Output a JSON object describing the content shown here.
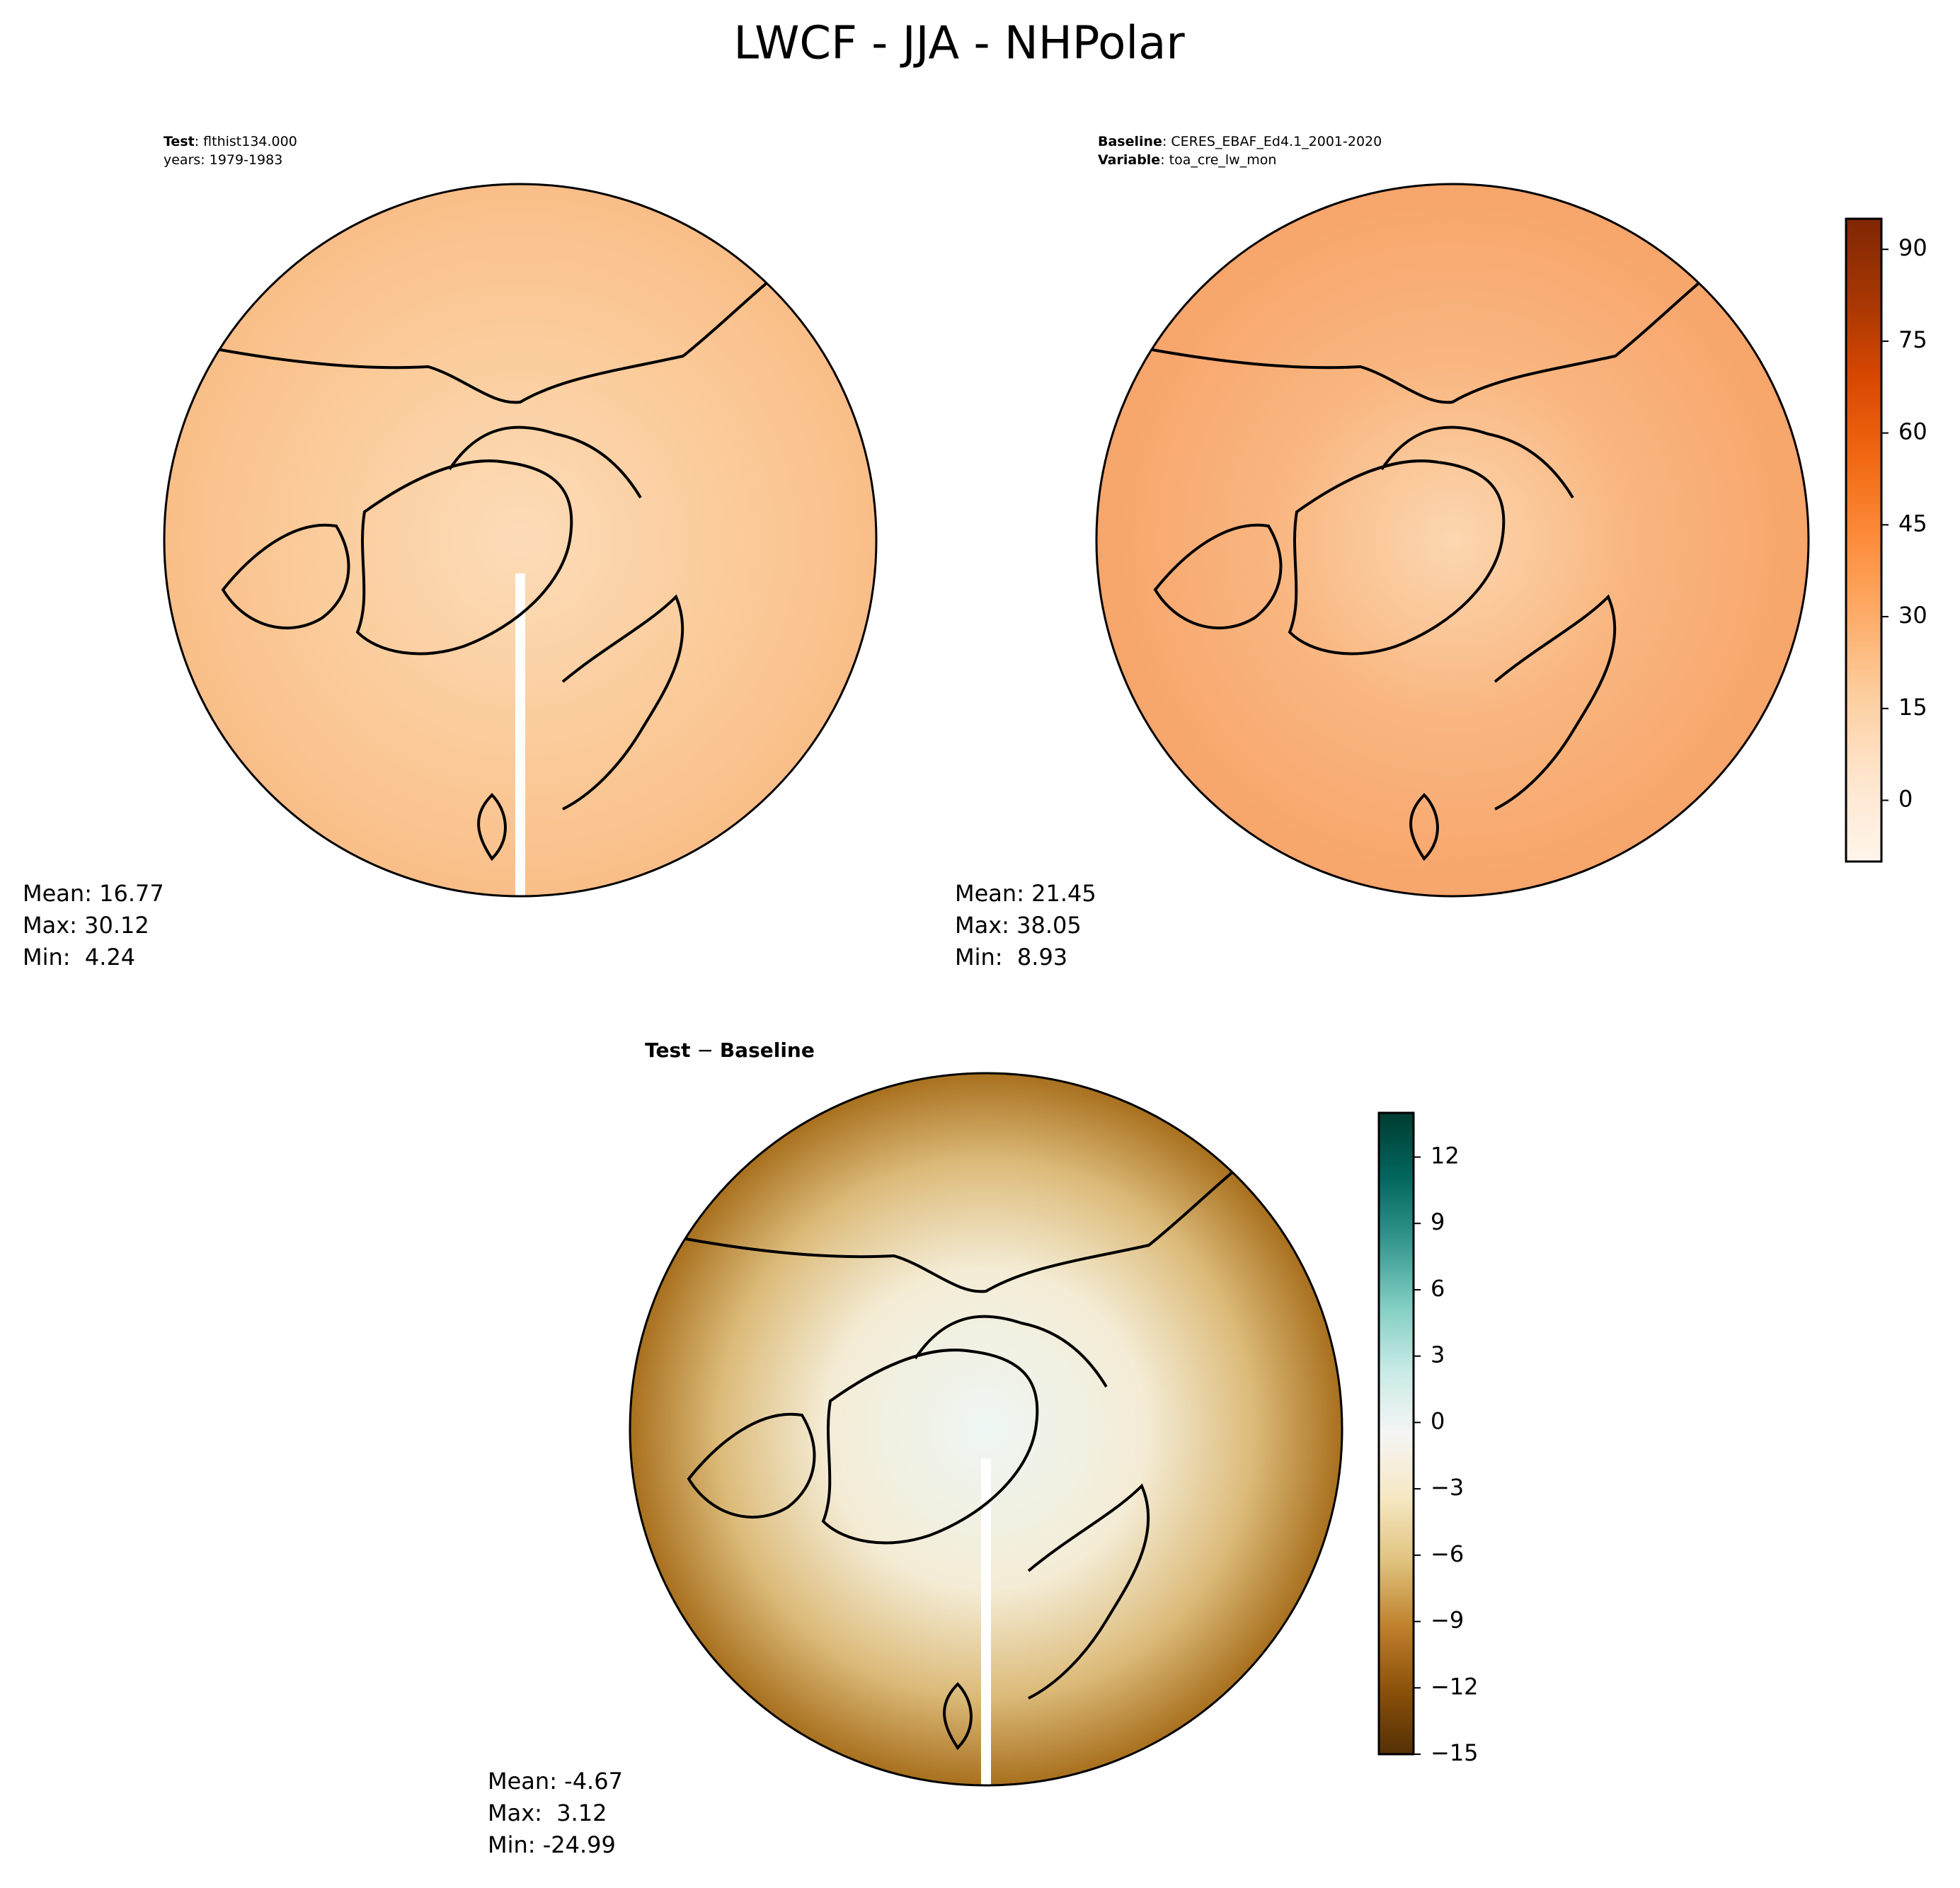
{
  "title": "LWCF - JJA - NHPolar",
  "panels": [
    {
      "heading": [
        {
          "bold": "Test",
          "text": ": flthist134.000"
        },
        {
          "text": "years: 1979-1983"
        }
      ],
      "stats": [
        "Mean: 16.77",
        "Max: 30.12",
        "Min:  4.24"
      ]
    },
    {
      "heading": [
        {
          "bold": "Baseline",
          "text": ": CERES_EBAF_Ed4.1_2001-2020"
        },
        {
          "bold": "Variable",
          "text": ": toa_cre_lw_mon"
        }
      ],
      "stats": [
        "Mean: 21.45",
        "Max: 38.05",
        "Min:  8.93"
      ]
    },
    {
      "heading": [
        {
          "bold": "Test",
          "text": " − ",
          "bold2": "Baseline"
        }
      ],
      "stats": [
        "Mean: -4.67",
        "Max:  3.12",
        "Min: -24.99"
      ]
    }
  ],
  "colorbars": [
    {
      "ylim": [
        -10,
        95
      ],
      "yticks": [
        0,
        15,
        30,
        45,
        60,
        75,
        90
      ],
      "cmap": [
        "#fff5eb",
        "#fee6ce",
        "#fdd0a2",
        "#fdae6b",
        "#fd8d3c",
        "#f16913",
        "#d94801",
        "#a63603",
        "#7f2704"
      ]
    },
    {
      "ylim": [
        -15,
        14
      ],
      "yticks": [
        {
          "value": -15,
          "label": "−15"
        },
        {
          "value": -12,
          "label": "−12"
        },
        {
          "value": -9,
          "label": "−9"
        },
        {
          "value": -6,
          "label": "−6"
        },
        {
          "value": -3,
          "label": "−3"
        },
        0,
        3,
        6,
        9,
        12
      ],
      "cmap": [
        "#543005",
        "#8c510a",
        "#bf812d",
        "#dfc27d",
        "#f6e8c3",
        "#f5f5f5",
        "#c7eae5",
        "#80cdc1",
        "#35978f",
        "#01665e",
        "#003c30"
      ]
    }
  ]
}
